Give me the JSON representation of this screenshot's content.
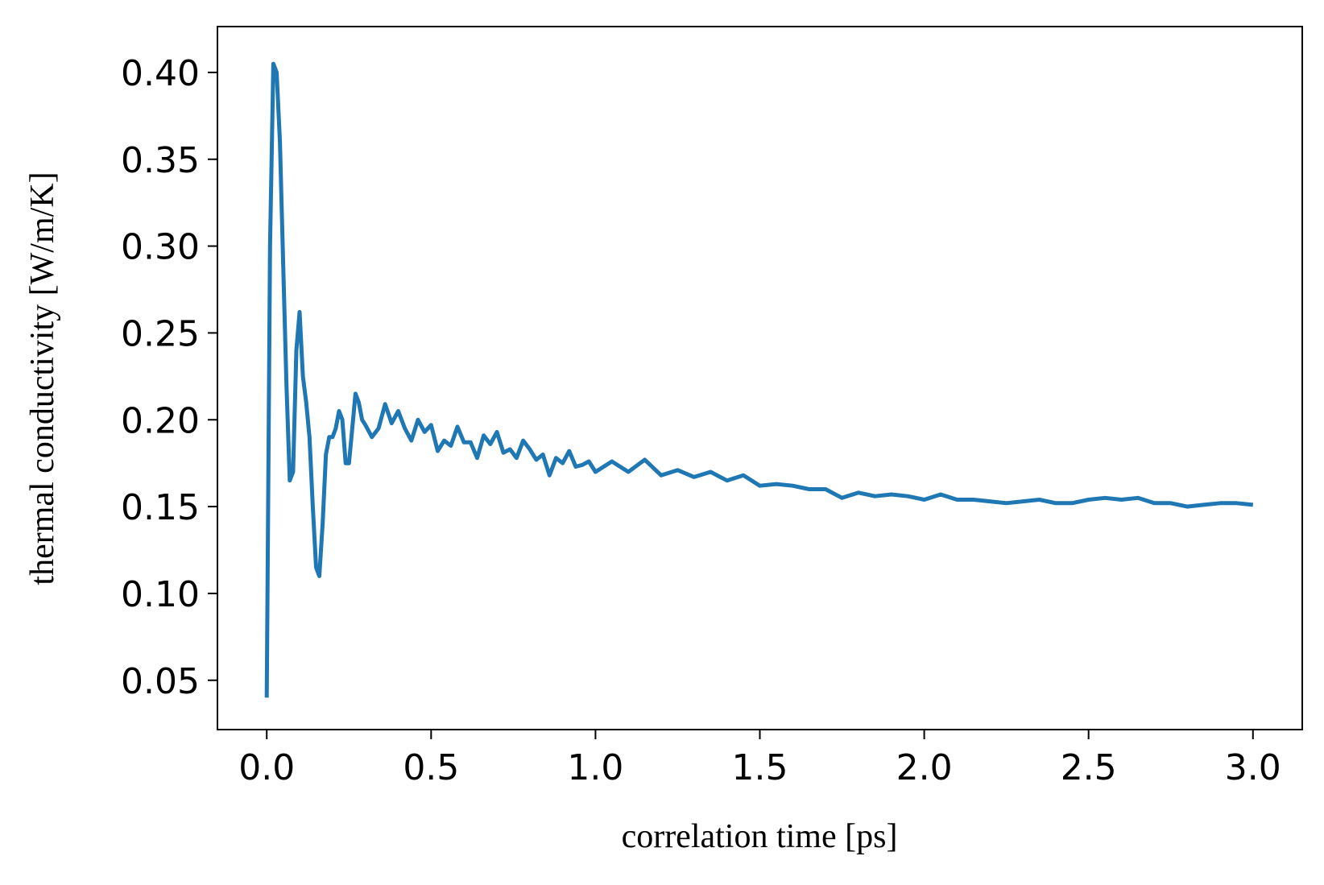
{
  "chart_data": {
    "type": "line",
    "xlabel": "correlation time [ps]",
    "ylabel": "thermal conductivity [W/m/K]",
    "x": [
      0,
      0.01,
      0.02,
      0.03,
      0.04,
      0.05,
      0.06,
      0.07,
      0.08,
      0.09,
      0.1,
      0.11,
      0.12,
      0.13,
      0.14,
      0.15,
      0.16,
      0.17,
      0.18,
      0.19,
      0.2,
      0.21,
      0.22,
      0.23,
      0.24,
      0.25,
      0.26,
      0.27,
      0.28,
      0.29,
      0.3,
      0.32,
      0.34,
      0.36,
      0.38,
      0.4,
      0.42,
      0.44,
      0.46,
      0.48,
      0.5,
      0.52,
      0.54,
      0.56,
      0.58,
      0.6,
      0.62,
      0.64,
      0.66,
      0.68,
      0.7,
      0.72,
      0.74,
      0.76,
      0.78,
      0.8,
      0.82,
      0.84,
      0.86,
      0.88,
      0.9,
      0.92,
      0.94,
      0.96,
      0.98,
      1.0,
      1.05,
      1.1,
      1.15,
      1.2,
      1.25,
      1.3,
      1.35,
      1.4,
      1.45,
      1.5,
      1.55,
      1.6,
      1.65,
      1.7,
      1.75,
      1.8,
      1.85,
      1.9,
      1.95,
      2.0,
      2.05,
      2.1,
      2.15,
      2.2,
      2.25,
      2.3,
      2.35,
      2.4,
      2.45,
      2.5,
      2.55,
      2.6,
      2.65,
      2.7,
      2.75,
      2.8,
      2.85,
      2.9,
      2.95,
      3.0
    ],
    "series": [
      {
        "color": "#1f77b4",
        "values": [
          0.04,
          0.3,
          0.405,
          0.4,
          0.36,
          0.29,
          0.22,
          0.165,
          0.17,
          0.24,
          0.262,
          0.225,
          0.21,
          0.19,
          0.15,
          0.115,
          0.11,
          0.14,
          0.18,
          0.19,
          0.19,
          0.195,
          0.205,
          0.2,
          0.175,
          0.175,
          0.195,
          0.215,
          0.21,
          0.2,
          0.197,
          0.19,
          0.195,
          0.209,
          0.198,
          0.205,
          0.195,
          0.188,
          0.2,
          0.193,
          0.197,
          0.182,
          0.188,
          0.185,
          0.196,
          0.187,
          0.187,
          0.178,
          0.191,
          0.186,
          0.193,
          0.181,
          0.183,
          0.178,
          0.188,
          0.183,
          0.177,
          0.18,
          0.168,
          0.178,
          0.175,
          0.182,
          0.173,
          0.174,
          0.176,
          0.17,
          0.176,
          0.17,
          0.177,
          0.168,
          0.171,
          0.167,
          0.17,
          0.165,
          0.168,
          0.162,
          0.163,
          0.162,
          0.16,
          0.16,
          0.155,
          0.158,
          0.156,
          0.157,
          0.156,
          0.154,
          0.157,
          0.154,
          0.154,
          0.153,
          0.152,
          0.153,
          0.154,
          0.152,
          0.152,
          0.154,
          0.155,
          0.154,
          0.155,
          0.152,
          0.152,
          0.15,
          0.151,
          0.152,
          0.152,
          0.151
        ]
      }
    ],
    "xlim": [
      -0.15,
      3.15
    ],
    "xticks": [
      {
        "value": 0,
        "label": "0.0"
      },
      0.5,
      {
        "value": 1,
        "label": "1.0"
      },
      1.5,
      {
        "value": 2,
        "label": "2.0"
      },
      2.5,
      {
        "value": 3,
        "label": "3.0"
      }
    ],
    "ylim": [
      0.0216,
      0.4264
    ],
    "yticks": [
      0.05,
      {
        "value": 0.1,
        "label": "0.10"
      },
      0.15,
      {
        "value": 0.2,
        "label": "0.20"
      },
      0.25,
      {
        "value": 0.3,
        "label": "0.30"
      },
      0.35,
      {
        "value": 0.4,
        "label": "0.40"
      }
    ],
    "grid": false
  }
}
